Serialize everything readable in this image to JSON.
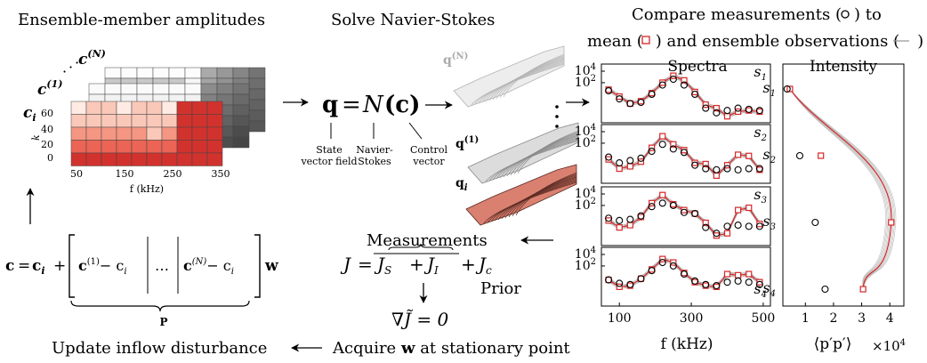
{
  "panels": {
    "amplitudes": {
      "title": "Ensemble-member amplitudes",
      "member_labels": [
        "c",
        "c",
        "c"
      ],
      "member_sup": [
        "(N)",
        "(1)"
      ],
      "member_sub": "i",
      "y_axis_label": "k",
      "y_ticks": [
        "60",
        "40",
        "20",
        "0"
      ],
      "x_ticks": [
        "50",
        "150",
        "250",
        "350"
      ],
      "x_axis_label": "f (kHz)"
    },
    "solve": {
      "title": "Solve Navier-Stokes",
      "equation_lhs": "q",
      "equation_eq": "=",
      "equation_op": "N",
      "equation_arg": "(c)",
      "annotations": [
        "State\nvector field",
        "Navier-\nStokes",
        "Control\nvector"
      ],
      "field_labels": [
        "q",
        "q",
        "q"
      ],
      "field_sup": [
        "(N)",
        "(1)"
      ],
      "field_sub": "i"
    },
    "cost": {
      "measurements_label": "Measurements",
      "J": "J",
      "J_S": "J",
      "J_S_sub": "S",
      "J_I": "J",
      "J_I_sub": "I",
      "J_c": "J",
      "J_c_sub": "c",
      "prior_label": "Prior",
      "gradient": "∇J̃ = 0",
      "acquire": "Acquire",
      "acquire_w": "w",
      "acquire_rest": "at stationary point"
    },
    "update": {
      "label": "Update inflow disturbance",
      "eq_left": "c = c",
      "eq_plus": "+",
      "mat_col1": "c",
      "mat_col1_sup": "(1)",
      "mat_minus": "− c",
      "mat_dots": "…",
      "mat_colN": "c",
      "mat_colN_sup": "(N)",
      "eq_w": "w",
      "brace_label": "P"
    },
    "compare": {
      "title_line1": "Compare measurements (",
      "title_line1_end": ") to",
      "title_line2a": "mean (",
      "title_line2b": ") and ensemble observations (",
      "title_line2c": ")"
    }
  },
  "chart_data": [
    {
      "type": "line",
      "title": "Spectra",
      "xlabel": "f (kHz)",
      "x_ticks": [
        "100",
        "300",
        "500"
      ],
      "y_tick_major": "10",
      "y_tick_exps": [
        "4",
        "2"
      ],
      "yscale": "log",
      "xlim": [
        50,
        520
      ],
      "panel_labels": [
        "s",
        "s",
        "s",
        "s"
      ],
      "panel_label_subs": [
        "1",
        "2",
        "3",
        "4"
      ],
      "x": [
        70,
        100,
        130,
        160,
        190,
        220,
        250,
        280,
        310,
        340,
        370,
        400,
        430,
        460,
        490
      ],
      "panels": [
        {
          "measurements": [
            1.3,
            0.6,
            0.2,
            0.3,
            1.0,
            1.8,
            2.3,
            1.8,
            1.0,
            -0.2,
            -0.6,
            -0.4,
            -0.2,
            -0.3,
            -0.4
          ],
          "mean": [
            1.4,
            0.8,
            0.2,
            0.4,
            1.1,
            2.0,
            2.6,
            2.2,
            1.2,
            0.1,
            -0.2,
            -0.9,
            -0.5,
            -0.4,
            -0.5
          ]
        },
        {
          "measurements": [
            0.8,
            0.3,
            0.5,
            0.7,
            1.3,
            1.9,
            1.5,
            1.2,
            0.1,
            -0.2,
            -0.3,
            -0.2,
            -0.3,
            -0.2,
            -0.2
          ],
          "mean": [
            0.6,
            -0.2,
            0.0,
            0.4,
            1.6,
            2.6,
            1.9,
            1.4,
            0.3,
            0.2,
            -0.8,
            0.1,
            1.0,
            0.9,
            -0.3
          ]
        },
        {
          "measurements": [
            0.9,
            0.7,
            0.8,
            1.1,
            1.9,
            2.2,
            2.0,
            1.4,
            1.3,
            0.1,
            -0.4,
            0.2,
            0.3,
            0.2,
            0.2
          ],
          "mean": [
            0.7,
            0.1,
            0.3,
            1.0,
            2.2,
            2.9,
            2.1,
            1.6,
            1.3,
            0.5,
            -0.6,
            -0.4,
            1.6,
            1.8,
            0.4
          ]
        },
        {
          "measurements": [
            0.8,
            0.5,
            0.4,
            0.9,
            1.6,
            2.3,
            2.0,
            1.3,
            0.7,
            0.4,
            0.3,
            0.6,
            0.7,
            0.6,
            0.4
          ],
          "mean": [
            0.8,
            0.2,
            0.3,
            0.9,
            1.7,
            2.6,
            2.3,
            1.4,
            0.6,
            0.3,
            0.2,
            1.3,
            1.2,
            1.3,
            0.6
          ]
        }
      ]
    },
    {
      "type": "line",
      "title": "Intensity",
      "xlabel": "⟨p′p′⟩",
      "x_scale_note": "×10",
      "x_scale_exp": "4",
      "x_ticks": [
        "1",
        "2",
        "3",
        "4"
      ],
      "xlim": [
        0.2,
        4.5
      ],
      "y_labels": [
        "s",
        "s",
        "s",
        "s"
      ],
      "y_label_subs": [
        "1",
        "2",
        "3",
        "4"
      ],
      "stations": [
        1,
        2,
        3,
        4
      ],
      "measurements": [
        0.35,
        0.8,
        1.35,
        1.7
      ],
      "mean": [
        0.45,
        1.55,
        4.05,
        3.05
      ]
    }
  ],
  "colors": {
    "red": "#d62728",
    "mean_marker": "#e03030",
    "gray": "#9a9a9a",
    "dark_gray": "#555555"
  }
}
